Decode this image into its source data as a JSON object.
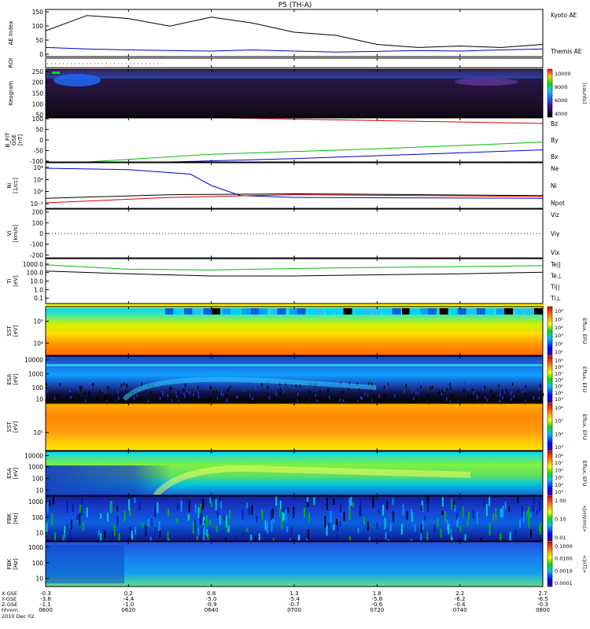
{
  "title": "P5 (TH-A)",
  "colors": {
    "red": "#d00000",
    "green": "#00c000",
    "blue": "#0000c8",
    "black": "#000000"
  },
  "panels": [
    {
      "id": "ae",
      "ylabel": [
        "AE Index"
      ],
      "ticks": [
        "150",
        "100",
        "50",
        "0"
      ],
      "legend": [
        {
          "text": "Kyoto AE",
          "color": "blue"
        },
        {
          "text": "Themis AE",
          "color": "black"
        }
      ]
    },
    {
      "id": "roi",
      "ylabel": [
        "ROI"
      ],
      "ticks": [],
      "legend": []
    },
    {
      "id": "keogram",
      "ylabel": [
        "Keogram"
      ],
      "ticks": [
        "250",
        "200",
        "150",
        "100",
        "50"
      ],
      "legend": []
    },
    {
      "id": "bfit",
      "ylabel": [
        "B_FIT",
        "GSE",
        "[nT]"
      ],
      "ticks": [
        "100",
        "50",
        "0",
        "-50",
        "-100"
      ],
      "legend": [
        {
          "text": "Bz",
          "color": "red"
        },
        {
          "text": "By",
          "color": "green"
        },
        {
          "text": "Bx",
          "color": "blue"
        }
      ]
    },
    {
      "id": "ni",
      "ylabel": [
        "Ni",
        "[1/cc]"
      ],
      "ticks": [
        "10⁴",
        "10²",
        "10⁰",
        "10⁻²"
      ],
      "legend": [
        {
          "text": "Ne",
          "color": "red"
        },
        {
          "text": "Ni",
          "color": "black"
        },
        {
          "text": "Npot",
          "color": "blue"
        }
      ]
    },
    {
      "id": "vi",
      "ylabel": [
        "Vi",
        "[km/s]"
      ],
      "ticks": [
        "200",
        "100",
        "0",
        "-100",
        "-200"
      ],
      "legend": [
        {
          "text": "Viz",
          "color": "red"
        },
        {
          "text": "Viy",
          "color": "green"
        },
        {
          "text": "Vix",
          "color": "blue"
        }
      ]
    },
    {
      "id": "ti",
      "ylabel": [
        "Ti",
        "[eV]"
      ],
      "ticks": [
        "1000.0",
        "100.0",
        "10.0",
        "1.0",
        "0.1"
      ],
      "legend": [
        {
          "text": "Te||",
          "color": "black"
        },
        {
          "text": "Te⊥",
          "color": "red"
        },
        {
          "text": "Ti||",
          "color": "green"
        },
        {
          "text": "Ti⊥",
          "color": "blue"
        }
      ]
    },
    {
      "id": "sst_e",
      "ylabel": [
        "SST",
        "[eV]"
      ],
      "ticks": [
        "10⁵",
        "10⁴"
      ],
      "legend": []
    },
    {
      "id": "esa_e",
      "ylabel": [
        "ESA",
        "[eV]"
      ],
      "ticks": [
        "10000",
        "1000",
        "100",
        "10"
      ],
      "legend": []
    },
    {
      "id": "sst_i",
      "ylabel": [
        "SST",
        "[eV]"
      ],
      "ticks": [
        "10⁵"
      ],
      "legend": []
    },
    {
      "id": "esa_i",
      "ylabel": [
        "ESA",
        "[eV]"
      ],
      "ticks": [
        "10000",
        "1000",
        "100",
        "10"
      ],
      "legend": []
    },
    {
      "id": "fbk1",
      "ylabel": [
        "FBK",
        "[Hz]"
      ],
      "ticks": [
        "1000",
        "100",
        "10"
      ],
      "legend": []
    },
    {
      "id": "fbk2",
      "ylabel": [
        "FBK",
        "[Hz]"
      ],
      "ticks": [
        "1000",
        "100",
        "10"
      ],
      "legend": []
    }
  ],
  "colorbars": [
    {
      "id": "keogram",
      "label": "[counts]",
      "ticks": [
        "10000",
        "8000",
        "6000",
        "4000"
      ]
    },
    {
      "id": "sst_e",
      "label": "Eflux, EFU",
      "ticks": [
        "10⁶",
        "10⁵",
        "10⁴",
        "10³",
        "10²",
        "10¹"
      ]
    },
    {
      "id": "esa_e",
      "label": "Eflux, EFU",
      "ticks": [
        "10⁹",
        "10⁸",
        "10⁷",
        "10⁶",
        "10⁵",
        "10⁴",
        "10³"
      ]
    },
    {
      "id": "sst_i",
      "label": "Eflux, EFU",
      "ticks": [
        "10⁶",
        "10⁵",
        "10⁴",
        "10³"
      ]
    },
    {
      "id": "esa_i",
      "label": "Eflux, EFU",
      "ticks": [
        "10⁸",
        "10⁷",
        "10⁶",
        "10⁵",
        "10⁴",
        "10³"
      ]
    },
    {
      "id": "fbk1",
      "label": "<|mV/m|>",
      "ticks": [
        "1.00",
        "0.10",
        "0.01"
      ]
    },
    {
      "id": "fbk2",
      "label": "<|nT|>",
      "ticks": [
        "0.1000",
        "0.0100",
        "0.0010",
        "0.0001"
      ]
    }
  ],
  "x_axis": {
    "row_labels": [
      "X-GSE",
      "Y-GSE",
      "Z-GSE",
      "hhmm",
      "2010 Dec 02"
    ],
    "columns": [
      {
        "x": "-0.3",
        "y": "-3.8",
        "z": "-1.1",
        "t": "0600"
      },
      {
        "x": "0.2",
        "y": "-4.4",
        "z": "-1.0",
        "t": "0620"
      },
      {
        "x": "0.8",
        "y": "-5.0",
        "z": "-0.9",
        "t": "0640"
      },
      {
        "x": "1.3",
        "y": "-5.4",
        "z": "-0.7",
        "t": "0700"
      },
      {
        "x": "1.8",
        "y": "-5.8",
        "z": "-0.6",
        "t": "0720"
      },
      {
        "x": "2.2",
        "y": "-6.2",
        "z": "-0.4",
        "t": "0740"
      },
      {
        "x": "2.7",
        "y": "-6.5",
        "z": "-0.3",
        "t": "0800"
      }
    ]
  },
  "chart_data": {
    "type": "line",
    "title": "P5 (TH-A)",
    "time_range": [
      "0600",
      "0800"
    ],
    "series": [
      {
        "name": "Kyoto AE",
        "panel": "ae",
        "t_min": [
          0,
          10,
          20,
          30,
          40,
          50,
          60,
          70,
          80,
          90,
          100,
          110,
          120
        ],
        "values": [
          30,
          25,
          22,
          20,
          18,
          22,
          18,
          15,
          17,
          20,
          18,
          22,
          25
        ]
      },
      {
        "name": "Themis AE",
        "panel": "ae",
        "t_min": [
          0,
          10,
          20,
          30,
          40,
          50,
          60,
          70,
          80,
          90,
          100,
          110,
          120
        ],
        "values": [
          85,
          135,
          125,
          100,
          130,
          110,
          80,
          70,
          40,
          30,
          35,
          30,
          40
        ]
      },
      {
        "name": "Bz",
        "panel": "bfit",
        "t_min": [
          44,
          120
        ],
        "values": [
          100,
          75
        ]
      },
      {
        "name": "By",
        "panel": "bfit",
        "t_min": [
          10,
          40,
          80,
          120
        ],
        "values": [
          -100,
          -65,
          -40,
          -10
        ]
      },
      {
        "name": "Bx",
        "panel": "bfit",
        "t_min": [
          30,
          60,
          90,
          120
        ],
        "values": [
          -100,
          -85,
          -65,
          -45
        ]
      },
      {
        "name": "Ti||",
        "panel": "ti",
        "t_min": [
          0,
          20,
          40,
          60,
          80,
          100,
          120
        ],
        "values": [
          800,
          250,
          200,
          300,
          400,
          500,
          650
        ]
      },
      {
        "name": "Te||",
        "panel": "ti",
        "t_min": [
          0,
          20,
          40,
          60,
          80,
          100,
          120
        ],
        "values": [
          150,
          70,
          40,
          40,
          55,
          70,
          110
        ]
      }
    ]
  }
}
